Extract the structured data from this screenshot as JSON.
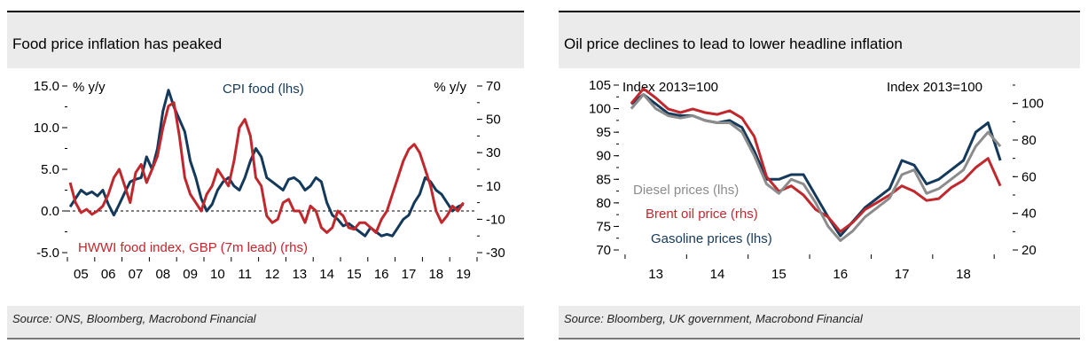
{
  "colors": {
    "navy": "#14395b",
    "red": "#c0282d",
    "grey": "#8c8c8c"
  },
  "chart_data": [
    {
      "type": "line",
      "title": "Food price inflation has peaked",
      "source": "Source: ONS, Bloomberg, Macrobond Financial",
      "ylabel_left": "% y/y",
      "ylabel_right": "% y/y",
      "ylim_left": [
        -5,
        15
      ],
      "ylim_right": [
        -30,
        70
      ],
      "yticks_left": [
        "15.0",
        "10.0",
        "5.0",
        "0.0",
        "-5.0"
      ],
      "yticks_right": [
        "70",
        "50",
        "30",
        "10",
        "-10",
        "-30"
      ],
      "xlim": [
        2004.5,
        2019.5
      ],
      "x_tick_labels": [
        "05",
        "06",
        "07",
        "08",
        "09",
        "10",
        "11",
        "12",
        "13",
        "14",
        "15",
        "16",
        "17",
        "18",
        "19"
      ],
      "zero_line": 0,
      "series": [
        {
          "name": "CPI food (lhs)",
          "axis": "left",
          "color": "#14395b",
          "x": [
            2004.6,
            2004.8,
            2005.0,
            2005.2,
            2005.4,
            2005.6,
            2005.8,
            2006.0,
            2006.2,
            2006.4,
            2006.6,
            2006.8,
            2007.0,
            2007.2,
            2007.4,
            2007.6,
            2007.8,
            2008.0,
            2008.2,
            2008.4,
            2008.6,
            2008.8,
            2009.0,
            2009.2,
            2009.4,
            2009.6,
            2009.8,
            2010.0,
            2010.2,
            2010.4,
            2010.6,
            2010.8,
            2011.0,
            2011.2,
            2011.4,
            2011.6,
            2011.8,
            2012.0,
            2012.2,
            2012.4,
            2012.6,
            2012.8,
            2013.0,
            2013.2,
            2013.4,
            2013.6,
            2013.8,
            2014.0,
            2014.2,
            2014.4,
            2014.6,
            2014.8,
            2015.0,
            2015.2,
            2015.4,
            2015.6,
            2015.8,
            2016.0,
            2016.2,
            2016.4,
            2016.6,
            2016.8,
            2017.0,
            2017.2,
            2017.4,
            2017.6,
            2017.8,
            2018.0,
            2018.2,
            2018.4,
            2018.6,
            2018.8,
            2019.0
          ],
          "values": [
            0.5,
            1.5,
            2.5,
            2.0,
            2.3,
            1.8,
            2.5,
            0.8,
            -0.5,
            0.8,
            2.2,
            3.5,
            3.8,
            4.0,
            6.5,
            5.0,
            7.5,
            12.0,
            14.5,
            12.5,
            11.0,
            9.5,
            6.0,
            4.0,
            1.5,
            0.0,
            0.8,
            2.5,
            3.5,
            4.0,
            3.0,
            2.5,
            4.0,
            6.0,
            7.5,
            6.5,
            4.0,
            3.5,
            3.0,
            2.5,
            3.8,
            4.0,
            3.5,
            2.5,
            3.0,
            4.0,
            3.5,
            1.0,
            -0.5,
            -1.0,
            -1.8,
            -1.5,
            -2.0,
            -2.5,
            -3.0,
            -2.0,
            -2.5,
            -3.0,
            -2.8,
            -3.0,
            -2.0,
            -1.0,
            -0.5,
            1.0,
            2.0,
            4.0,
            3.5,
            2.5,
            2.0,
            1.0,
            0.0,
            0.5,
            0.8
          ]
        },
        {
          "name": "HWWI food index, GBP (7m lead) (rhs)",
          "axis": "right",
          "color": "#c0282d",
          "x": [
            2004.6,
            2004.8,
            2005.0,
            2005.2,
            2005.4,
            2005.6,
            2005.8,
            2006.0,
            2006.2,
            2006.4,
            2006.6,
            2006.8,
            2007.0,
            2007.2,
            2007.4,
            2007.6,
            2007.8,
            2008.0,
            2008.2,
            2008.4,
            2008.6,
            2008.8,
            2009.0,
            2009.2,
            2009.4,
            2009.6,
            2009.8,
            2010.0,
            2010.2,
            2010.4,
            2010.6,
            2010.8,
            2011.0,
            2011.2,
            2011.4,
            2011.6,
            2011.8,
            2012.0,
            2012.2,
            2012.4,
            2012.6,
            2012.8,
            2013.0,
            2013.2,
            2013.4,
            2013.6,
            2013.8,
            2014.0,
            2014.2,
            2014.4,
            2014.6,
            2014.8,
            2015.0,
            2015.2,
            2015.4,
            2015.6,
            2015.8,
            2016.0,
            2016.2,
            2016.4,
            2016.6,
            2016.8,
            2017.0,
            2017.2,
            2017.4,
            2017.6,
            2017.8,
            2018.0,
            2018.2,
            2018.4,
            2018.6,
            2018.8,
            2019.0
          ],
          "values": [
            12,
            0,
            -6,
            -4,
            -7,
            -5,
            -2,
            5,
            15,
            20,
            10,
            0,
            18,
            23,
            12,
            20,
            28,
            45,
            58,
            60,
            40,
            15,
            5,
            0,
            -5,
            5,
            10,
            20,
            15,
            10,
            25,
            45,
            50,
            40,
            15,
            10,
            -8,
            -12,
            -10,
            0,
            2,
            -5,
            -5,
            -12,
            -2,
            -5,
            -15,
            -18,
            -15,
            -5,
            -8,
            -15,
            -16,
            -12,
            -12,
            -15,
            -18,
            -10,
            -5,
            5,
            15,
            25,
            32,
            35,
            30,
            20,
            10,
            -5,
            -12,
            -8,
            -2,
            -5,
            0
          ]
        }
      ],
      "annotations": [
        {
          "text": "CPI food (lhs)",
          "color": "#14395b"
        },
        {
          "text": "HWWI food index, GBP (7m lead) (rhs)",
          "color": "#c0282d"
        }
      ]
    },
    {
      "type": "line",
      "title": "Oil price declines to lead to lower headline inflation",
      "source": "Source: Bloomberg, UK government, Macrobond Financial",
      "ylabel_left": "Index 2013=100",
      "ylabel_right": "Index 2013=100",
      "ylim_left": [
        70,
        105
      ],
      "ylim_right": [
        20,
        110
      ],
      "yticks_left": [
        "105",
        "100",
        "95",
        "90",
        "85",
        "80",
        "75",
        "70"
      ],
      "yticks_right": [
        "100",
        "80",
        "60",
        "40",
        "20"
      ],
      "xlim": [
        2012.4,
        2018.8
      ],
      "x_tick_labels": [
        "13",
        "14",
        "15",
        "16",
        "17",
        "18"
      ],
      "series": [
        {
          "name": "Gasoline prices (lhs)",
          "axis": "left",
          "color": "#14395b",
          "x": [
            2012.6,
            2012.8,
            2013.0,
            2013.2,
            2013.4,
            2013.6,
            2013.8,
            2014.0,
            2014.2,
            2014.4,
            2014.6,
            2014.8,
            2015.0,
            2015.2,
            2015.4,
            2015.6,
            2015.8,
            2016.0,
            2016.2,
            2016.4,
            2016.6,
            2016.8,
            2017.0,
            2017.2,
            2017.4,
            2017.6,
            2017.8,
            2018.0,
            2018.2,
            2018.4,
            2018.6
          ],
          "values": [
            101,
            103,
            101,
            99,
            98.5,
            98.5,
            97.5,
            97,
            97.5,
            96,
            91,
            85,
            85,
            86,
            86,
            81.5,
            77,
            73,
            76,
            79,
            81,
            83,
            89,
            88,
            84,
            85,
            87,
            89,
            95,
            97,
            89
          ]
        },
        {
          "name": "Brent oil price (rhs)",
          "axis": "right",
          "color": "#c0282d",
          "x": [
            2012.6,
            2012.8,
            2013.0,
            2013.2,
            2013.4,
            2013.6,
            2013.8,
            2014.0,
            2014.2,
            2014.4,
            2014.6,
            2014.8,
            2015.0,
            2015.2,
            2015.4,
            2015.6,
            2015.8,
            2016.0,
            2016.2,
            2016.4,
            2016.6,
            2016.8,
            2017.0,
            2017.2,
            2017.4,
            2017.6,
            2017.8,
            2018.0,
            2018.2,
            2018.4,
            2018.6
          ],
          "values": [
            100,
            108,
            103,
            97,
            95,
            97,
            95,
            94,
            96,
            92,
            82,
            60,
            52,
            55,
            50,
            42,
            38,
            30,
            35,
            42,
            46,
            50,
            55,
            52,
            47,
            48,
            54,
            58,
            65,
            70,
            55
          ]
        },
        {
          "name": "Diesel prices (lhs)",
          "axis": "left",
          "color": "#8c8c8c",
          "x": [
            2012.6,
            2012.8,
            2013.0,
            2013.2,
            2013.4,
            2013.6,
            2013.8,
            2014.0,
            2014.2,
            2014.4,
            2014.6,
            2014.8,
            2015.0,
            2015.2,
            2015.4,
            2015.6,
            2015.8,
            2016.0,
            2016.2,
            2016.4,
            2016.6,
            2016.8,
            2017.0,
            2017.2,
            2017.4,
            2017.6,
            2017.8,
            2018.0,
            2018.2,
            2018.4,
            2018.6
          ],
          "values": [
            100,
            103,
            100,
            98.5,
            98,
            98.5,
            97.5,
            97,
            97,
            95,
            90,
            84,
            82,
            85,
            84,
            80,
            75,
            72,
            74,
            77,
            79,
            81,
            86,
            87,
            82,
            83,
            85,
            87,
            92,
            95,
            92
          ]
        }
      ],
      "annotations": [
        {
          "text": "Diesel prices (lhs)",
          "color": "#8c8c8c"
        },
        {
          "text": "Brent oil price (rhs)",
          "color": "#c0282d"
        },
        {
          "text": "Gasoline prices (lhs)",
          "color": "#14395b"
        }
      ]
    }
  ]
}
